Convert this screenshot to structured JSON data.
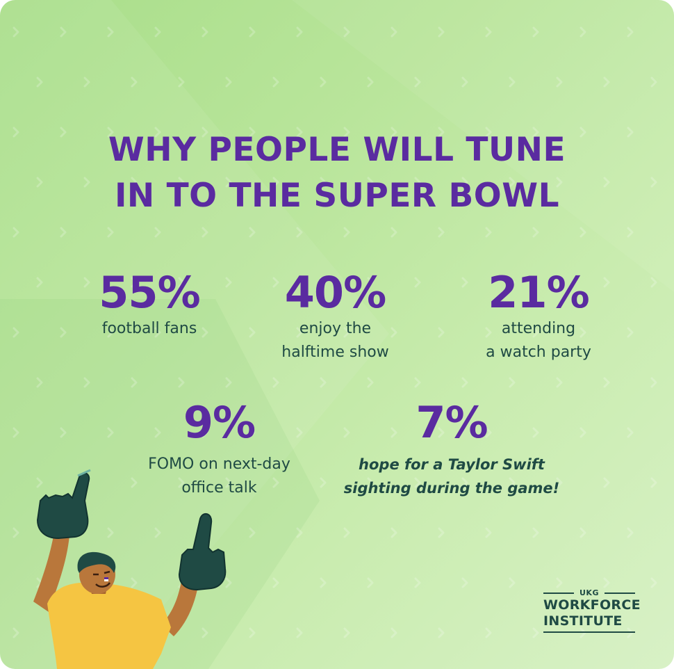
{
  "title": {
    "line1": "WHY PEOPLE WILL TUNE",
    "line2": "IN TO THE SUPER BOWL"
  },
  "stats": [
    {
      "value": "55%",
      "label": "football fans"
    },
    {
      "value": "40%",
      "label": "enjoy the\nhalftime show"
    },
    {
      "value": "21%",
      "label": "attending\na watch party"
    },
    {
      "value": "9%",
      "label": "FOMO on next-day\noffice talk"
    },
    {
      "value": "7%",
      "label": "hope for a Taylor Swift\nsighting during the game!"
    }
  ],
  "logo": {
    "brand": "UKG",
    "line1": "WORKFORCE",
    "line2": "INSTITUTE"
  },
  "colors": {
    "title": "#5a2ba0",
    "text": "#1f4a44",
    "background": "#b9e59b",
    "shirt": "#f5c542",
    "foam_finger": "#1f4a44"
  },
  "illustration": "fan-with-foam-fingers"
}
